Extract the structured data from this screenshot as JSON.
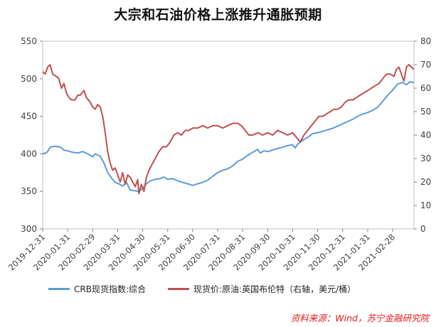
{
  "title": "大宗和石油价格上涨推升通胀预期",
  "source": "资料来源：Wind，苏宁金融研究院",
  "chart_data": {
    "type": "line",
    "x_labels": [
      "2019-12-31",
      "2020-01-31",
      "2020-02-29",
      "2020-03-31",
      "2020-04-30",
      "2020-05-31",
      "2020-06-30",
      "2020-07-31",
      "2020-08-31",
      "2020-09-30",
      "2020-10-31",
      "2020-11-30",
      "2020-12-31",
      "2021-01-31",
      "2021-02-28"
    ],
    "y_left": {
      "min": 300,
      "max": 550,
      "ticks": [
        300,
        350,
        400,
        450,
        500,
        550
      ]
    },
    "y_right": {
      "min": 0,
      "max": 80,
      "ticks": [
        0,
        10,
        20,
        30,
        40,
        50,
        60,
        70,
        80
      ]
    },
    "series": [
      {
        "name": "CRB现货指数:综合",
        "axis": "left",
        "color": "#5b9bd5",
        "points": [
          [
            0,
            401
          ],
          [
            0.08,
            400
          ],
          [
            0.2,
            403
          ],
          [
            0.3,
            409
          ],
          [
            0.5,
            410
          ],
          [
            0.7,
            409
          ],
          [
            0.85,
            405
          ],
          [
            1.0,
            404
          ],
          [
            1.2,
            402
          ],
          [
            1.4,
            401
          ],
          [
            1.6,
            403
          ],
          [
            1.8,
            400
          ],
          [
            2.0,
            396
          ],
          [
            2.1,
            400
          ],
          [
            2.3,
            397
          ],
          [
            2.45,
            388
          ],
          [
            2.6,
            375
          ],
          [
            2.75,
            368
          ],
          [
            2.9,
            362
          ],
          [
            3.05,
            360
          ],
          [
            3.2,
            357
          ],
          [
            3.35,
            362
          ],
          [
            3.5,
            352
          ],
          [
            3.65,
            351
          ],
          [
            3.85,
            350
          ],
          [
            4.0,
            354
          ],
          [
            4.15,
            360
          ],
          [
            4.3,
            364
          ],
          [
            4.5,
            366
          ],
          [
            4.7,
            367
          ],
          [
            4.85,
            369
          ],
          [
            5.0,
            366
          ],
          [
            5.2,
            367
          ],
          [
            5.4,
            364
          ],
          [
            5.6,
            362
          ],
          [
            5.8,
            360
          ],
          [
            6.0,
            358
          ],
          [
            6.2,
            360
          ],
          [
            6.4,
            362
          ],
          [
            6.6,
            365
          ],
          [
            6.8,
            370
          ],
          [
            7.0,
            375
          ],
          [
            7.2,
            378
          ],
          [
            7.4,
            380
          ],
          [
            7.6,
            384
          ],
          [
            7.8,
            390
          ],
          [
            8.0,
            393
          ],
          [
            8.2,
            398
          ],
          [
            8.4,
            402
          ],
          [
            8.6,
            406
          ],
          [
            8.7,
            401
          ],
          [
            8.85,
            404
          ],
          [
            9.0,
            403
          ],
          [
            9.2,
            405
          ],
          [
            9.4,
            407
          ],
          [
            9.6,
            409
          ],
          [
            9.8,
            411
          ],
          [
            10.0,
            412
          ],
          [
            10.1,
            408
          ],
          [
            10.2,
            413
          ],
          [
            10.4,
            418
          ],
          [
            10.6,
            422
          ],
          [
            10.8,
            427
          ],
          [
            11.0,
            428
          ],
          [
            11.2,
            430
          ],
          [
            11.4,
            432
          ],
          [
            11.6,
            434
          ],
          [
            11.8,
            437
          ],
          [
            12.0,
            440
          ],
          [
            12.2,
            443
          ],
          [
            12.4,
            446
          ],
          [
            12.6,
            450
          ],
          [
            12.8,
            453
          ],
          [
            13.0,
            455
          ],
          [
            13.2,
            458
          ],
          [
            13.4,
            462
          ],
          [
            13.6,
            470
          ],
          [
            13.8,
            478
          ],
          [
            14.0,
            485
          ],
          [
            14.2,
            493
          ],
          [
            14.4,
            495
          ],
          [
            14.55,
            492
          ],
          [
            14.7,
            496
          ],
          [
            14.85,
            495
          ]
        ]
      },
      {
        "name": "现货价:原油:英国布伦特（右轴，美元/桶）",
        "axis": "right",
        "color": "#c0504d",
        "points": [
          [
            0,
            67
          ],
          [
            0.1,
            66
          ],
          [
            0.2,
            69
          ],
          [
            0.3,
            70
          ],
          [
            0.4,
            66
          ],
          [
            0.55,
            65
          ],
          [
            0.65,
            64
          ],
          [
            0.75,
            60
          ],
          [
            0.85,
            62
          ],
          [
            0.95,
            58
          ],
          [
            1.05,
            56
          ],
          [
            1.15,
            55
          ],
          [
            1.3,
            55
          ],
          [
            1.4,
            57
          ],
          [
            1.5,
            57
          ],
          [
            1.65,
            59
          ],
          [
            1.75,
            56
          ],
          [
            1.9,
            54
          ],
          [
            2.0,
            52
          ],
          [
            2.1,
            51
          ],
          [
            2.2,
            53
          ],
          [
            2.3,
            52
          ],
          [
            2.4,
            48
          ],
          [
            2.5,
            41
          ],
          [
            2.6,
            33
          ],
          [
            2.7,
            28
          ],
          [
            2.8,
            25
          ],
          [
            2.9,
            26
          ],
          [
            3.0,
            23
          ],
          [
            3.1,
            20
          ],
          [
            3.2,
            24
          ],
          [
            3.3,
            19
          ],
          [
            3.4,
            23
          ],
          [
            3.5,
            22
          ],
          [
            3.6,
            20
          ],
          [
            3.7,
            18
          ],
          [
            3.8,
            21
          ],
          [
            3.85,
            15
          ],
          [
            3.95,
            19
          ],
          [
            4.05,
            16
          ],
          [
            4.15,
            22
          ],
          [
            4.25,
            25
          ],
          [
            4.35,
            27
          ],
          [
            4.5,
            30
          ],
          [
            4.65,
            33
          ],
          [
            4.8,
            35
          ],
          [
            4.95,
            35
          ],
          [
            5.1,
            37
          ],
          [
            5.25,
            40
          ],
          [
            5.4,
            41
          ],
          [
            5.55,
            40
          ],
          [
            5.7,
            42
          ],
          [
            5.85,
            42
          ],
          [
            6.0,
            43
          ],
          [
            6.2,
            43
          ],
          [
            6.4,
            44
          ],
          [
            6.6,
            43
          ],
          [
            6.8,
            44
          ],
          [
            7.0,
            44
          ],
          [
            7.2,
            43
          ],
          [
            7.4,
            44
          ],
          [
            7.6,
            45
          ],
          [
            7.8,
            45
          ],
          [
            7.95,
            44
          ],
          [
            8.1,
            42
          ],
          [
            8.25,
            40
          ],
          [
            8.4,
            40
          ],
          [
            8.6,
            41
          ],
          [
            8.8,
            40
          ],
          [
            9.0,
            41
          ],
          [
            9.2,
            40
          ],
          [
            9.4,
            42
          ],
          [
            9.6,
            41
          ],
          [
            9.8,
            40
          ],
          [
            10.0,
            41
          ],
          [
            10.15,
            39
          ],
          [
            10.3,
            37
          ],
          [
            10.45,
            40
          ],
          [
            10.6,
            42
          ],
          [
            10.75,
            44
          ],
          [
            10.9,
            46
          ],
          [
            11.05,
            48
          ],
          [
            11.2,
            48
          ],
          [
            11.35,
            49
          ],
          [
            11.5,
            50
          ],
          [
            11.65,
            51
          ],
          [
            11.8,
            51
          ],
          [
            11.95,
            52
          ],
          [
            12.1,
            54
          ],
          [
            12.25,
            55
          ],
          [
            12.4,
            55
          ],
          [
            12.55,
            56
          ],
          [
            12.7,
            57
          ],
          [
            12.85,
            58
          ],
          [
            13.0,
            59
          ],
          [
            13.15,
            60
          ],
          [
            13.3,
            61
          ],
          [
            13.45,
            62
          ],
          [
            13.6,
            64
          ],
          [
            13.75,
            66
          ],
          [
            13.9,
            66
          ],
          [
            14.05,
            65
          ],
          [
            14.15,
            68
          ],
          [
            14.25,
            69
          ],
          [
            14.35,
            66
          ],
          [
            14.45,
            63
          ],
          [
            14.55,
            69
          ],
          [
            14.65,
            70
          ],
          [
            14.75,
            69
          ],
          [
            14.85,
            68
          ]
        ]
      }
    ]
  }
}
